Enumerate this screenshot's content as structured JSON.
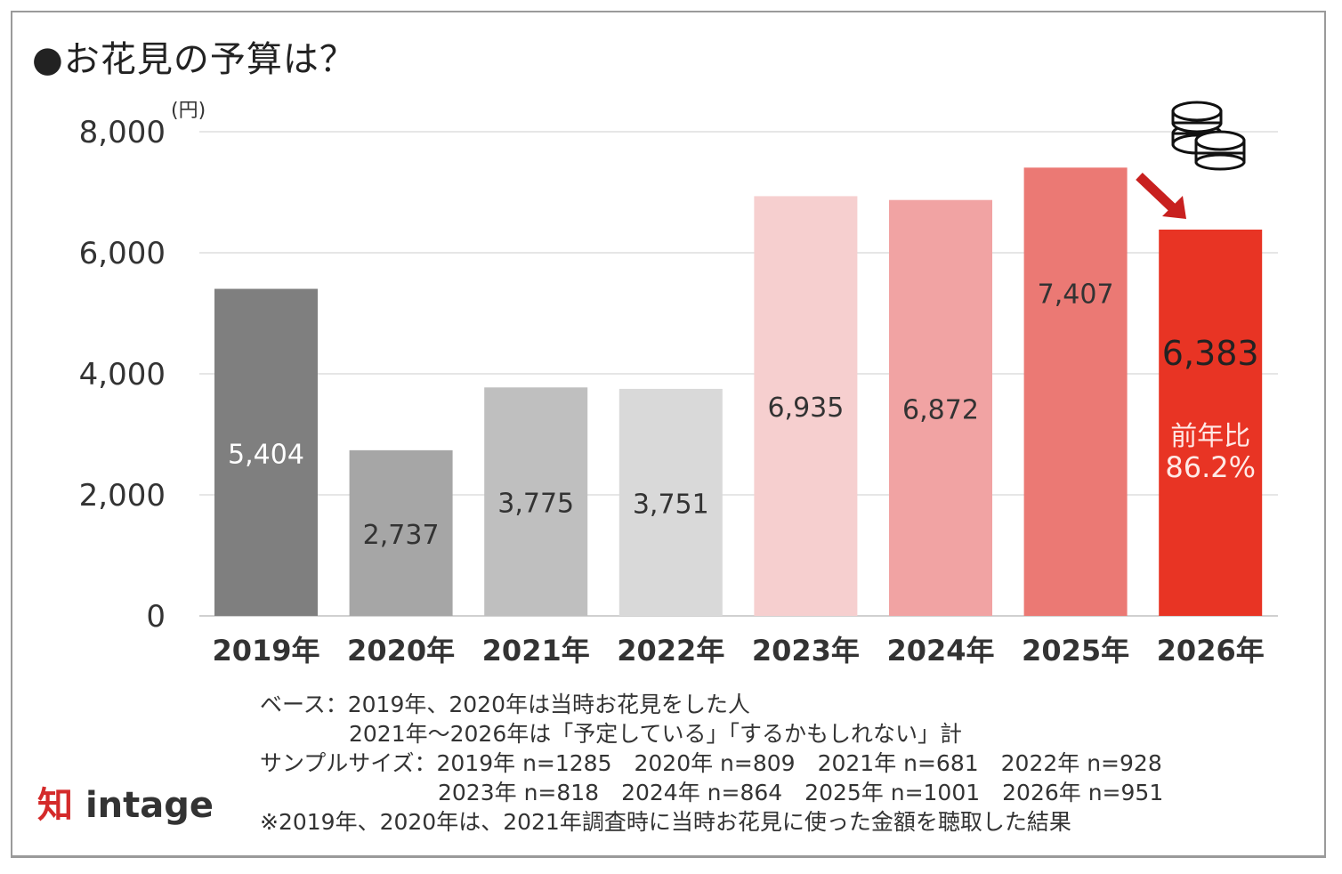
{
  "title": "●お花見の予算は？",
  "chart_data": {
    "type": "bar",
    "title": "お花見の予算は？",
    "ylabel": "(円)",
    "xlabel": "",
    "ylim": [
      0,
      8000
    ],
    "yticks": [
      0,
      2000,
      4000,
      6000,
      8000
    ],
    "ytick_labels": [
      "0",
      "2,000",
      "4,000",
      "6,000",
      "8,000"
    ],
    "grid": true,
    "categories": [
      "2019年",
      "2020年",
      "2021年",
      "2022年",
      "2023年",
      "2024年",
      "2025年",
      "2026年"
    ],
    "values": [
      5404,
      2737,
      3775,
      3751,
      6935,
      6872,
      7407,
      6383
    ],
    "value_labels": [
      "5,404",
      "2,737",
      "3,775",
      "3,751",
      "6,935",
      "6,872",
      "7,407",
      "6,383"
    ],
    "colors": [
      "#7f7f7f",
      "#a6a6a6",
      "#bfbfbf",
      "#d9d9d9",
      "#f6cfcf",
      "#f1a3a3",
      "#eb7974",
      "#e83424"
    ],
    "label_colors": [
      "#ffffff",
      "#333333",
      "#333333",
      "#333333",
      "#333333",
      "#333333",
      "#333333",
      "#222222"
    ],
    "annotation": {
      "line1": "前年比",
      "line2": "86.2%",
      "color": "#ffe9e6"
    },
    "arrow_color": "#c8201f"
  },
  "notes": [
    "ベース：2019年、2020年は当時お花見をした人",
    "　　　　2021年～2026年は「予定している」「するかもしれない」計",
    "サンプルサイズ：2019年 n=1285　2020年 n=809　2021年 n=681　2022年 n=928",
    "　　　　　　　　2023年 n=818　2024年 n=864　2025年 n=1001　2026年 n=951",
    "※2019年、2020年は、2021年調査時に当時お花見に使った金額を聴取した結果"
  ],
  "logo": {
    "mark": "知",
    "text": "intage"
  }
}
